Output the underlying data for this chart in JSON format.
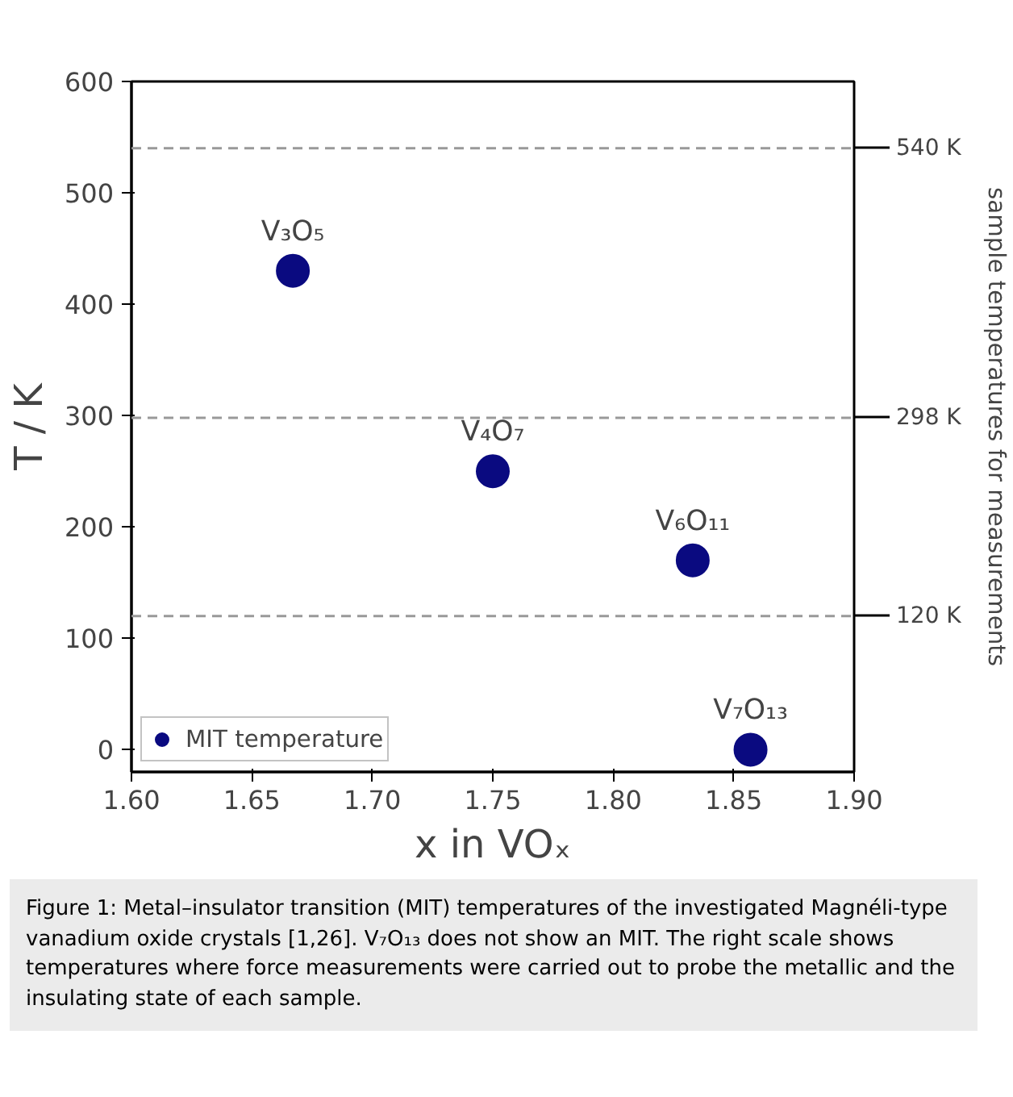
{
  "chart_data": {
    "type": "scatter",
    "x": [
      1.667,
      1.75,
      1.833,
      1.857
    ],
    "series": [
      {
        "name": "MIT temperature",
        "color": "#0a0a80",
        "values": [
          430,
          250,
          170,
          0
        ]
      }
    ],
    "xlabel": "x in VOₓ",
    "ylabel": "T / K",
    "y2label": "sample temperatures for measurements",
    "xlim": [
      1.6,
      1.9
    ],
    "ylim": [
      -20,
      600
    ],
    "xticks": [
      {
        "value": 1.6,
        "label": "1.60"
      },
      {
        "value": 1.65,
        "label": "1.65"
      },
      {
        "value": 1.7,
        "label": "1.70"
      },
      {
        "value": 1.75,
        "label": "1.75"
      },
      {
        "value": 1.8,
        "label": "1.80"
      },
      {
        "value": 1.85,
        "label": "1.85"
      },
      {
        "value": 1.9,
        "label": "1.90"
      }
    ],
    "yticks": [
      0,
      100,
      200,
      300,
      400,
      500,
      600
    ],
    "ref_lines": [
      {
        "axis": "y",
        "value": 540,
        "label": "540 K",
        "color": "#999999",
        "line_style": "dashed"
      },
      {
        "axis": "y",
        "value": 298,
        "label": "298 K",
        "color": "#999999",
        "line_style": "dashed"
      },
      {
        "axis": "y",
        "value": 120,
        "label": "120 K",
        "color": "#999999",
        "line_style": "dashed"
      }
    ],
    "annotations": [
      {
        "text": "V₃O₅",
        "x": 1.667,
        "y": 430
      },
      {
        "text": "V₄O₇",
        "x": 1.75,
        "y": 250
      },
      {
        "text": "V₆O₁₁",
        "x": 1.833,
        "y": 170
      },
      {
        "text": "V₇O₁₃",
        "x": 1.857,
        "y": 0
      },
      "Figure 1: Metal–insulator transition (MIT) temperatures of the investigated Magnéli-type vanadium oxide crystals [1,26]. V₇O₁₃ does not show an MIT. The right scale shows temperatures where force measurements were carried out to probe the metallic and the insulating state of each sample."
    ],
    "marker": "circle",
    "legend": "bottom left",
    "grid": false
  }
}
